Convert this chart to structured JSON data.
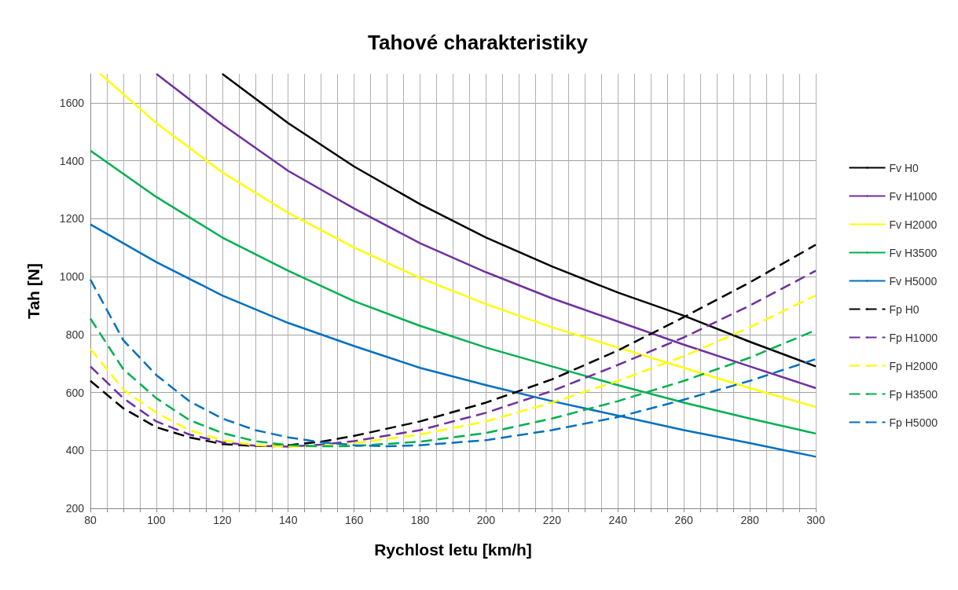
{
  "chart_data": {
    "type": "line",
    "title": "Tahové charakteristiky",
    "xlabel": "Rychlost letu [km/h]",
    "ylabel": "Tah [N]",
    "xlim": [
      80,
      300
    ],
    "ylim": [
      200,
      1700
    ],
    "xticks": [
      80,
      {
        "value": 85,
        "label": null
      },
      {
        "value": 90,
        "label": null
      },
      {
        "value": 95,
        "label": null
      },
      100,
      {
        "value": 105,
        "label": null
      },
      {
        "value": 110,
        "label": null
      },
      {
        "value": 115,
        "label": null
      },
      120,
      {
        "value": 125,
        "label": null
      },
      {
        "value": 130,
        "label": null
      },
      {
        "value": 135,
        "label": null
      },
      140,
      {
        "value": 145,
        "label": null
      },
      {
        "value": 150,
        "label": null
      },
      {
        "value": 155,
        "label": null
      },
      160,
      {
        "value": 165,
        "label": null
      },
      {
        "value": 170,
        "label": null
      },
      {
        "value": 175,
        "label": null
      },
      180,
      {
        "value": 185,
        "label": null
      },
      {
        "value": 190,
        "label": null
      },
      {
        "value": 195,
        "label": null
      },
      200,
      {
        "value": 205,
        "label": null
      },
      {
        "value": 210,
        "label": null
      },
      {
        "value": 215,
        "label": null
      },
      220,
      {
        "value": 225,
        "label": null
      },
      {
        "value": 230,
        "label": null
      },
      {
        "value": 235,
        "label": null
      },
      240,
      {
        "value": 245,
        "label": null
      },
      {
        "value": 250,
        "label": null
      },
      {
        "value": 255,
        "label": null
      },
      260,
      {
        "value": 265,
        "label": null
      },
      {
        "value": 270,
        "label": null
      },
      {
        "value": 275,
        "label": null
      },
      280,
      {
        "value": 285,
        "label": null
      },
      {
        "value": 290,
        "label": null
      },
      {
        "value": 295,
        "label": null
      },
      300
    ],
    "yticks": [
      200,
      400,
      600,
      800,
      1000,
      1200,
      1400,
      1600
    ],
    "grid": true,
    "legend": "right",
    "marker": "none",
    "series": [
      {
        "name": "Fv H0",
        "color": "#000000",
        "line_style": "solid",
        "x": [
          120,
          140,
          160,
          180,
          200,
          220,
          240,
          260,
          280,
          300
        ],
        "values": [
          1700,
          1530,
          1380,
          1250,
          1135,
          1035,
          945,
          865,
          775,
          690
        ]
      },
      {
        "name": "Fv H1000",
        "color": "#7030a0",
        "line_style": "solid",
        "x": [
          100,
          120,
          140,
          160,
          180,
          200,
          220,
          240,
          260,
          280,
          300
        ],
        "values": [
          1700,
          1525,
          1365,
          1235,
          1115,
          1015,
          925,
          845,
          765,
          690,
          615
        ]
      },
      {
        "name": "Fv H2000",
        "color": "#ffff00",
        "line_style": "solid",
        "x": [
          83,
          100,
          120,
          140,
          160,
          180,
          200,
          220,
          240,
          260,
          280,
          300
        ],
        "values": [
          1700,
          1530,
          1360,
          1220,
          1100,
          995,
          905,
          825,
          755,
          685,
          615,
          550
        ]
      },
      {
        "name": "Fv H3500",
        "color": "#00b050",
        "line_style": "solid",
        "x": [
          80,
          100,
          120,
          140,
          160,
          180,
          200,
          220,
          240,
          260,
          280,
          300
        ],
        "values": [
          1435,
          1275,
          1135,
          1020,
          915,
          830,
          755,
          690,
          625,
          565,
          510,
          458
        ]
      },
      {
        "name": "Fv H5000",
        "color": "#0070c0",
        "line_style": "solid",
        "x": [
          80,
          100,
          120,
          140,
          160,
          180,
          200,
          220,
          240,
          260,
          280,
          300
        ],
        "values": [
          1180,
          1050,
          935,
          840,
          760,
          685,
          625,
          570,
          520,
          470,
          425,
          378
        ]
      },
      {
        "name": "Fp H0",
        "color": "#000000",
        "line_style": "dashed",
        "x": [
          80,
          90,
          100,
          110,
          120,
          130,
          140,
          150,
          160,
          180,
          200,
          220,
          240,
          260,
          280,
          300
        ],
        "values": [
          640,
          545,
          480,
          445,
          422,
          415,
          418,
          430,
          450,
          500,
          565,
          645,
          745,
          860,
          980,
          1110
        ]
      },
      {
        "name": "Fp H1000",
        "color": "#7030a0",
        "line_style": "dashed",
        "x": [
          80,
          90,
          100,
          110,
          120,
          130,
          140,
          150,
          160,
          180,
          200,
          220,
          240,
          260,
          280,
          300
        ],
        "values": [
          690,
          580,
          500,
          455,
          428,
          416,
          413,
          420,
          432,
          470,
          530,
          605,
          695,
          790,
          900,
          1020
        ]
      },
      {
        "name": "Fp H2000",
        "color": "#ffff00",
        "line_style": "dashed",
        "x": [
          80,
          90,
          100,
          110,
          120,
          130,
          140,
          150,
          160,
          180,
          200,
          220,
          240,
          260,
          280,
          300
        ],
        "values": [
          750,
          610,
          530,
          470,
          435,
          418,
          413,
          415,
          425,
          455,
          500,
          565,
          640,
          725,
          825,
          935
        ]
      },
      {
        "name": "Fp H3500",
        "color": "#00b050",
        "line_style": "dashed",
        "x": [
          80,
          90,
          100,
          110,
          120,
          130,
          140,
          150,
          160,
          180,
          200,
          220,
          240,
          260,
          280,
          300
        ],
        "values": [
          855,
          680,
          580,
          505,
          460,
          432,
          418,
          414,
          415,
          430,
          460,
          510,
          570,
          640,
          720,
          815
        ]
      },
      {
        "name": "Fp H5000",
        "color": "#0070c0",
        "line_style": "dashed",
        "x": [
          80,
          90,
          100,
          110,
          120,
          130,
          140,
          150,
          160,
          170,
          180,
          200,
          220,
          240,
          260,
          280,
          300
        ],
        "values": [
          990,
          780,
          660,
          570,
          510,
          470,
          445,
          428,
          418,
          414,
          418,
          435,
          470,
          515,
          575,
          640,
          715
        ]
      }
    ]
  }
}
